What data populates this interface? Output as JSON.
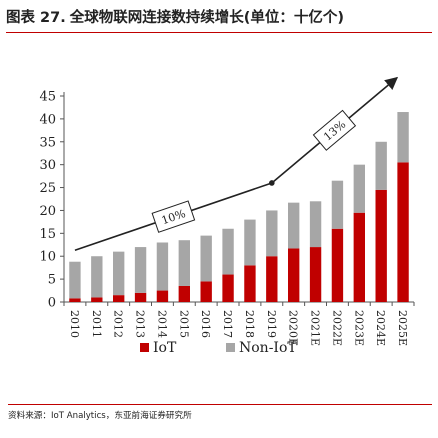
{
  "figure": {
    "number": "图表 27.",
    "title": "全球物联网连接数持续增长(单位：十亿个)",
    "source": "资料来源：IoT Analytics，东亚前海证券研究所"
  },
  "chart_data": {
    "type": "bar",
    "stacked": true,
    "categories": [
      "2010",
      "2011",
      "2012",
      "2013",
      "2014",
      "2015",
      "2016",
      "2017",
      "2018",
      "2019",
      "2020E",
      "2021E",
      "2022E",
      "2023E",
      "2024E",
      "2025E"
    ],
    "series": [
      {
        "name": "IoT",
        "color": "#c00000",
        "values": [
          0.8,
          1.0,
          1.5,
          2.0,
          2.5,
          3.5,
          4.5,
          6.0,
          8.0,
          10.0,
          11.7,
          12.0,
          16.0,
          19.5,
          24.5,
          30.5
        ]
      },
      {
        "name": "Non-IoT",
        "color": "#a6a6a6",
        "values": [
          8.0,
          9.0,
          9.5,
          10.0,
          10.5,
          10.0,
          10.0,
          10.0,
          10.0,
          10.0,
          10.0,
          10.0,
          10.5,
          10.5,
          10.5,
          11.0
        ]
      }
    ],
    "ylim": [
      0,
      45
    ],
    "yticks": [
      0,
      5,
      10,
      15,
      20,
      25,
      30,
      35,
      40,
      45
    ],
    "legend_position": "bottom",
    "grid": false,
    "annotations": [
      {
        "text": "10%",
        "from": "2010",
        "to": "2019"
      },
      {
        "text": "13%",
        "from": "2019",
        "to": "2025E"
      }
    ]
  }
}
